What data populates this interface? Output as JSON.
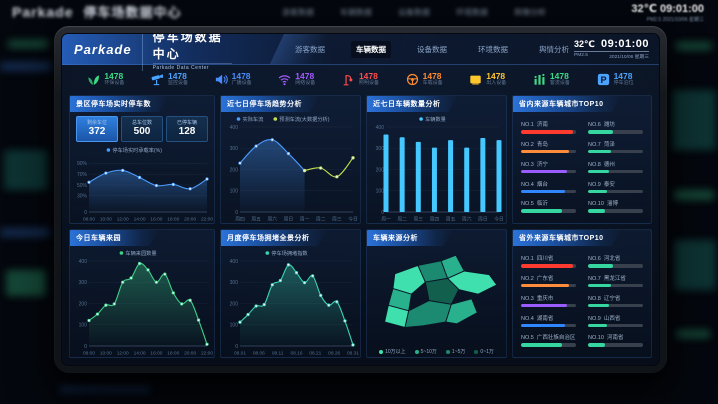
{
  "header": {
    "brand": "Parkade",
    "title": "停车场数据中心",
    "subtitle": "Parkade Data Center",
    "nav": [
      {
        "label": "游客数据",
        "active": false
      },
      {
        "label": "车辆数据",
        "active": true
      },
      {
        "label": "设备数据",
        "active": false
      },
      {
        "label": "环境数据",
        "active": false
      },
      {
        "label": "舆情分析",
        "active": false
      }
    ],
    "temperature": "32℃",
    "time": "09:01:00",
    "pm": "PM2.5",
    "date": "2021/10/06 星期三"
  },
  "stats": [
    {
      "icon": "leaf-icon",
      "color": "#3ddc84",
      "value": "1478",
      "label": "环保设备"
    },
    {
      "icon": "camera-icon",
      "color": "#4aa3ff",
      "value": "1478",
      "label": "监控设备"
    },
    {
      "icon": "speaker-icon",
      "color": "#4a8dff",
      "value": "1478",
      "label": "广播设备"
    },
    {
      "icon": "wifi-icon",
      "color": "#a55bff",
      "value": "1478",
      "label": "网络设备"
    },
    {
      "icon": "lamp-icon",
      "color": "#ff4d4d",
      "value": "1478",
      "label": "照明设备"
    },
    {
      "icon": "steering-icon",
      "color": "#ff8c2e",
      "value": "1478",
      "label": "车载设备"
    },
    {
      "icon": "gate-icon",
      "color": "#ffc62e",
      "value": "1478",
      "label": "出入设备"
    },
    {
      "icon": "flow-icon",
      "color": "#3ddc84",
      "value": "1478",
      "label": "客流设备"
    },
    {
      "icon": "parking-icon",
      "color": "#4aa3ff",
      "value": "1478",
      "label": "停车泊位"
    }
  ],
  "panels": {
    "p1": {
      "title": "景区停车场实时停车数",
      "boxes": [
        {
          "label": "剩余车位",
          "value": "372",
          "active": true
        },
        {
          "label": "总车位数",
          "value": "500",
          "active": false
        },
        {
          "label": "已停车辆",
          "value": "128",
          "active": false
        }
      ]
    },
    "p2": {
      "title": "近七日停车场趋势分析"
    },
    "p3": {
      "title": "近七日车辆数量分析"
    },
    "p4": {
      "title": "省内来源车辆城市TOP10"
    },
    "p5": {
      "title": "今日车辆来园"
    },
    "p6": {
      "title": "月度停车场拥堵全景分析"
    },
    "p7": {
      "title": "车辆来源分析"
    },
    "p8": {
      "title": "省外来源车辆城市TOP10"
    }
  },
  "map": {
    "legend": [
      {
        "label": "10万以上",
        "color": "#3fe0ae"
      },
      {
        "label": "5~10万",
        "color": "#28b18c"
      },
      {
        "label": "1~5万",
        "color": "#1b8a70"
      },
      {
        "label": "0~1万",
        "color": "#125f4e"
      }
    ]
  },
  "top10_province": {
    "items": [
      {
        "rank": "NO.1",
        "name": "济南",
        "color": "#ff3b30",
        "pct": 95
      },
      {
        "rank": "NO.2",
        "name": "青岛",
        "color": "#ff8c3a",
        "pct": 88
      },
      {
        "rank": "NO.3",
        "name": "济宁",
        "color": "#9b5cff",
        "pct": 84
      },
      {
        "rank": "NO.4",
        "name": "烟台",
        "color": "#2f86ff",
        "pct": 80
      },
      {
        "rank": "NO.5",
        "name": "临沂",
        "color": "#35d6a0",
        "pct": 74
      },
      {
        "rank": "NO.6",
        "name": "潍坊",
        "color": "#35d6a0",
        "pct": 46
      },
      {
        "rank": "NO.7",
        "name": "菏泽",
        "color": "#35d6a0",
        "pct": 42
      },
      {
        "rank": "NO.8",
        "name": "德州",
        "color": "#35d6a0",
        "pct": 38
      },
      {
        "rank": "NO.9",
        "name": "泰安",
        "color": "#35d6a0",
        "pct": 34
      },
      {
        "rank": "NO.10",
        "name": "淄博",
        "color": "#35d6a0",
        "pct": 30
      }
    ]
  },
  "top10_outside": {
    "items": [
      {
        "rank": "NO.1",
        "name": "四川省",
        "color": "#ff3b30",
        "pct": 95
      },
      {
        "rank": "NO.2",
        "name": "广东省",
        "color": "#ff8c3a",
        "pct": 88
      },
      {
        "rank": "NO.3",
        "name": "重庆市",
        "color": "#9b5cff",
        "pct": 84
      },
      {
        "rank": "NO.4",
        "name": "湖南省",
        "color": "#2f86ff",
        "pct": 80
      },
      {
        "rank": "NO.5",
        "name": "广西壮族自治区",
        "color": "#35d6a0",
        "pct": 74
      },
      {
        "rank": "NO.6",
        "name": "河北省",
        "color": "#35d6a0",
        "pct": 46
      },
      {
        "rank": "NO.7",
        "name": "黑龙江省",
        "color": "#35d6a0",
        "pct": 42
      },
      {
        "rank": "NO.8",
        "name": "辽宁省",
        "color": "#35d6a0",
        "pct": 38
      },
      {
        "rank": "NO.9",
        "name": "山西省",
        "color": "#35d6a0",
        "pct": 34
      },
      {
        "rank": "NO.10",
        "name": "河南省",
        "color": "#35d6a0",
        "pct": 30
      }
    ]
  },
  "chart_data": [
    {
      "id": "occupancy",
      "type": "line",
      "title": "景区停车场实时停车数",
      "xticks": [
        "08:00",
        "10:00",
        "12:00",
        "14:00",
        "16:00",
        "18:00",
        "20:00",
        "22:00"
      ],
      "ymin": 0,
      "ymax": 100,
      "yticks": [
        {
          "v": 90,
          "label": "90%"
        },
        {
          "v": 70,
          "label": "70%"
        },
        {
          "v": 50,
          "label": "50%"
        },
        {
          "v": 30,
          "label": "30%"
        },
        {
          "v": 0,
          "label": "0"
        }
      ],
      "series": [
        {
          "name": "停车场实时承载率(%)",
          "color": "#4a9bff",
          "area": true,
          "values": [
            55,
            72,
            77,
            64,
            49,
            51,
            43,
            61
          ]
        }
      ]
    },
    {
      "id": "week_trend",
      "type": "line",
      "title": "近七日停车场趋势分析",
      "xticks": [
        "周四",
        "周五",
        "周六",
        "周日",
        "周一",
        "周二",
        "周三",
        "今日"
      ],
      "ymin": 0,
      "ymax": 400,
      "yticks": [
        {
          "v": 400,
          "label": "400"
        },
        {
          "v": 300,
          "label": "300"
        },
        {
          "v": 200,
          "label": "200"
        },
        {
          "v": 100,
          "label": "100"
        },
        {
          "v": 0,
          "label": "0"
        }
      ],
      "series": [
        {
          "name": "实际车流",
          "color": "#4a9bff",
          "area": true,
          "values": [
            230,
            310,
            340,
            275,
            195,
            null,
            null,
            null
          ]
        },
        {
          "name": "预测车流(大数据分析)",
          "color": "#c3e04c",
          "area": false,
          "values": [
            null,
            null,
            null,
            null,
            195,
            207,
            166,
            255
          ]
        }
      ]
    },
    {
      "id": "week_vehicle",
      "type": "bar",
      "title": "近七日车辆数量分析",
      "xticks": [
        "周一",
        "周二",
        "周三",
        "周四",
        "周五",
        "周六",
        "周日",
        "今日"
      ],
      "ymin": 0,
      "ymax": 400,
      "yticks": [
        {
          "v": 400,
          "label": "400"
        },
        {
          "v": 300,
          "label": "300"
        },
        {
          "v": 200,
          "label": "200"
        },
        {
          "v": 100,
          "label": "100"
        },
        {
          "v": 0,
          "label": "0"
        }
      ],
      "series": [
        {
          "name": "车辆数量",
          "color": "#45c8ff",
          "values": [
            365,
            352,
            330,
            303,
            338,
            303,
            348,
            338
          ]
        }
      ]
    },
    {
      "id": "today_vehicle",
      "type": "line",
      "title": "今日车辆来园",
      "xticks": [
        "08:00",
        "10:00",
        "12:00",
        "14:00",
        "16:00",
        "18:00",
        "20:00",
        "22:00"
      ],
      "ymin": 0,
      "ymax": 400,
      "yticks": [
        {
          "v": 400,
          "label": "400"
        },
        {
          "v": 300,
          "label": "300"
        },
        {
          "v": 200,
          "label": "200"
        },
        {
          "v": 100,
          "label": "100"
        },
        {
          "v": 0,
          "label": "0"
        }
      ],
      "series": [
        {
          "name": "车辆来园数量",
          "color": "#3ed188",
          "area": true,
          "values": [
            120,
            150,
            192,
            198,
            300,
            320,
            388,
            358,
            300,
            338,
            250,
            198,
            215,
            122,
            8
          ]
        }
      ]
    },
    {
      "id": "month_congestion",
      "type": "line",
      "title": "月度停车场拥堵全景分析",
      "xticks": [
        "08.01",
        "08.06",
        "08.11",
        "08.16",
        "08.21",
        "08.26",
        "08.31"
      ],
      "ymin": 0,
      "ymax": 400,
      "yticks": [
        {
          "v": 400,
          "label": "400"
        },
        {
          "v": 300,
          "label": "300"
        },
        {
          "v": 200,
          "label": "200"
        },
        {
          "v": 100,
          "label": "100"
        },
        {
          "v": 0,
          "label": "0"
        }
      ],
      "series": [
        {
          "name": "停车场拥堵指数",
          "color": "#39d6b2",
          "area": true,
          "values": [
            112,
            148,
            188,
            195,
            288,
            308,
            382,
            345,
            298,
            330,
            238,
            192,
            208,
            118,
            5
          ]
        }
      ]
    }
  ],
  "background_ghost": {
    "brand": "Parkade",
    "title": "停车场数据中心",
    "temperature": "32℃",
    "time": "09:01:00",
    "meta": "PM2.5  2021/10/06 星期三"
  }
}
